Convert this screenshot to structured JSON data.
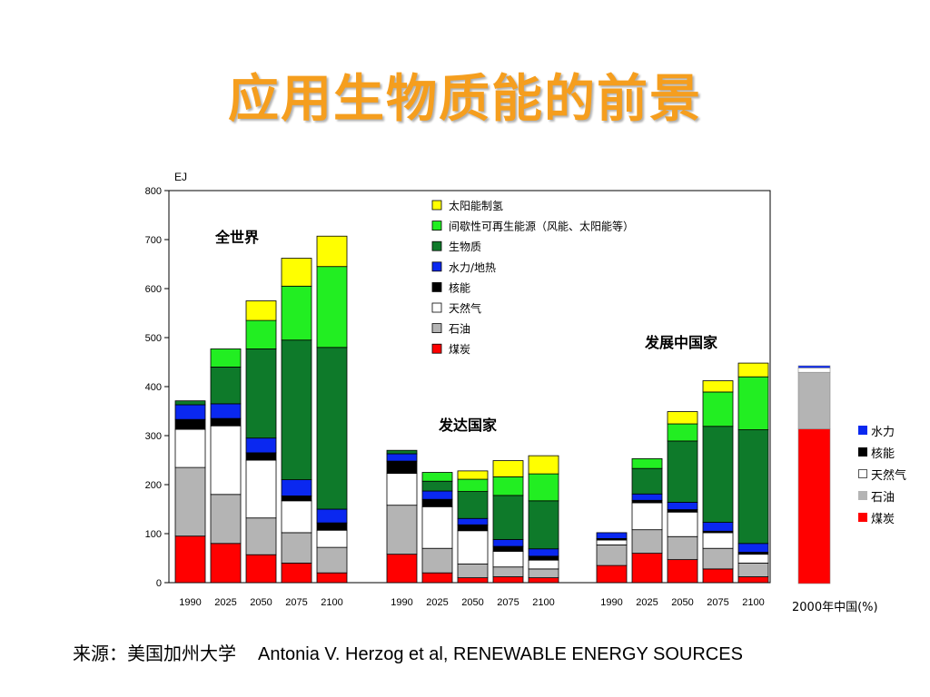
{
  "title": "应用生物质能的前景",
  "source": {
    "label": "来源：美国加州大学",
    "citation": "Antonia V. Herzog et al,  RENEWABLE ENERGY SOURCES"
  },
  "chart_data": [
    {
      "type": "bar",
      "stacked": true,
      "yunit": "EJ",
      "ylim": [
        0,
        800
      ],
      "yticks": [
        0,
        100,
        200,
        300,
        400,
        500,
        600,
        700,
        800
      ],
      "grid": false,
      "legend_position": "top-center",
      "series": [
        {
          "name": "煤炭",
          "color": "#FF0000"
        },
        {
          "name": "石油",
          "color": "#B4B4B4"
        },
        {
          "name": "天然气",
          "color": "#FFFFFF"
        },
        {
          "name": "核能",
          "color": "#000000"
        },
        {
          "name": "水力/地热",
          "color": "#0A28F0"
        },
        {
          "name": "生物质",
          "color": "#0E7A2A"
        },
        {
          "name": "间歇性可再生能源（风能、太阳能等）",
          "color": "#22EE22"
        },
        {
          "name": "太阳能制氢",
          "color": "#FFFF00"
        }
      ],
      "groups": [
        {
          "label": "全世界",
          "categories": [
            "1990",
            "2025",
            "2050",
            "2075",
            "2100"
          ],
          "values": [
            [
              95,
              140,
              78,
              20,
              30,
              8,
              0,
              0
            ],
            [
              80,
              100,
              140,
              15,
              30,
              75,
              37,
              0
            ],
            [
              57,
              75,
              118,
              15,
              30,
              182,
              58,
              40
            ],
            [
              40,
              62,
              65,
              10,
              33,
              285,
              110,
              57
            ],
            [
              20,
              52,
              35,
              15,
              28,
              330,
              165,
              62
            ]
          ]
        },
        {
          "label": "发达国家",
          "categories": [
            "1990",
            "2025",
            "2050",
            "2075",
            "2100"
          ],
          "values": [
            [
              58,
              100,
              65,
              25,
              15,
              7,
              0,
              0
            ],
            [
              20,
              50,
              85,
              15,
              17,
              20,
              18,
              0
            ],
            [
              10,
              28,
              68,
              12,
              13,
              55,
              25,
              17
            ],
            [
              12,
              20,
              32,
              10,
              14,
              90,
              38,
              33
            ],
            [
              10,
              18,
              18,
              8,
              15,
              98,
              55,
              37
            ]
          ]
        },
        {
          "label": "发展中国家",
          "categories": [
            "1990",
            "2025",
            "2050",
            "2075",
            "2100"
          ],
          "values": [
            [
              35,
              42,
              10,
              3,
              12,
              0,
              0,
              0
            ],
            [
              60,
              48,
              55,
              5,
              13,
              52,
              20,
              0
            ],
            [
              47,
              47,
              50,
              5,
              15,
              125,
              35,
              25
            ],
            [
              28,
              42,
              32,
              3,
              18,
              196,
              70,
              23
            ],
            [
              12,
              28,
              18,
              4,
              18,
              232,
              108,
              28
            ]
          ]
        }
      ]
    },
    {
      "type": "bar",
      "stacked": true,
      "caption": "2000年中国(%)",
      "categories": [
        "2000"
      ],
      "series": [
        {
          "name": "煤炭",
          "color": "#FF0000",
          "values": [
            71
          ]
        },
        {
          "name": "石油",
          "color": "#B4B4B4",
          "values": [
            26
          ]
        },
        {
          "name": "天然气",
          "color": "#FFFFFF",
          "values": [
            2
          ]
        },
        {
          "name": "核能",
          "color": "#000000",
          "values": [
            0
          ]
        },
        {
          "name": "水力",
          "color": "#0A28F0",
          "values": [
            1
          ]
        }
      ],
      "legend": [
        {
          "name": "水力",
          "color": "#0A28F0"
        },
        {
          "name": "核能",
          "color": "#000000"
        },
        {
          "name": "天然气",
          "color": "#FFFFFF"
        },
        {
          "name": "石油",
          "color": "#B4B4B4"
        },
        {
          "name": "煤炭",
          "color": "#FF0000"
        }
      ]
    }
  ]
}
